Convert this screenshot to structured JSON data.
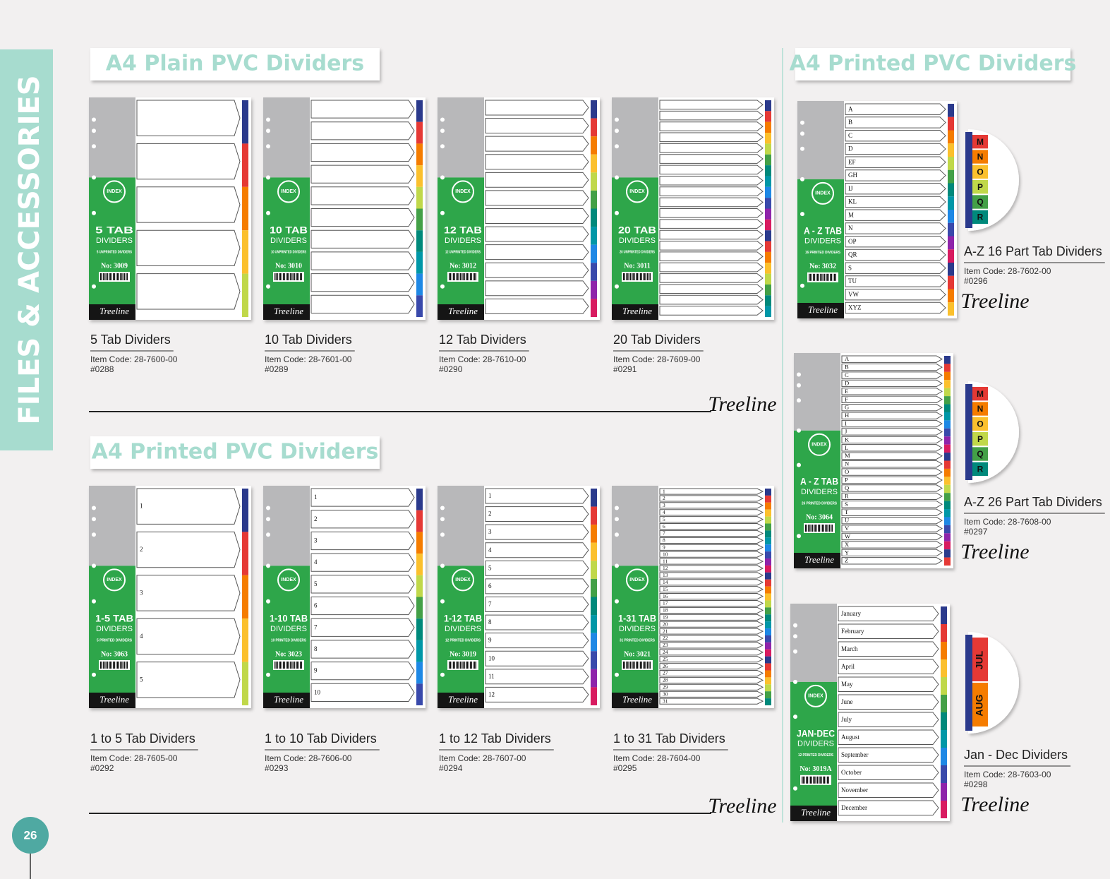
{
  "side_label": "FILES & ACCESSORIES",
  "page_number": "26",
  "brand": "Treeline",
  "pack_index": "INDEX",
  "pack_dividers": "DIVIDERS",
  "sections": [
    {
      "title": "A4 Plain PVC Dividers",
      "products": [
        {
          "name": "5 Tab Dividers",
          "item_code": "Item Code: 28-7600-00",
          "ref": "#0288",
          "pack": {
            "tab": "5 TAB",
            "note": "5 UNPRINTED DIVIDERS",
            "number": "No: 3009",
            "tab_count": 5
          }
        },
        {
          "name": "10 Tab Dividers",
          "item_code": "Item Code: 28-7601-00",
          "ref": "#0289",
          "pack": {
            "tab": "10 TAB",
            "note": "10 UNPRINTED DIVIDERS",
            "number": "No: 3010",
            "tab_count": 10
          }
        },
        {
          "name": "12 Tab Dividers",
          "item_code": "Item Code: 28-7610-00",
          "ref": "#0290",
          "pack": {
            "tab": "12 TAB",
            "note": "12 UNPRINTED DIVIDERS",
            "number": "No: 3012",
            "tab_count": 12
          }
        },
        {
          "name": "20 Tab Dividers",
          "item_code": "Item Code: 28-7609-00",
          "ref": "#0291",
          "pack": {
            "tab": "20 TAB",
            "note": "20 UNPRINTED DIVIDERS",
            "number": "No: 3011",
            "tab_count": 20
          }
        }
      ]
    },
    {
      "title": "A4 Printed PVC Dividers",
      "products": [
        {
          "name": "1 to 5 Tab Dividers",
          "item_code": "Item Code: 28-7605-00",
          "ref": "#0292",
          "pack": {
            "tab": "1-5 TAB",
            "note": "5 PRINTED DIVIDERS",
            "number": "No: 3063",
            "tab_labels": [
              "1",
              "2",
              "3",
              "4",
              "5"
            ]
          }
        },
        {
          "name": "1 to 10 Tab Dividers",
          "item_code": "Item Code: 28-7606-00",
          "ref": "#0293",
          "pack": {
            "tab": "1-10 TAB",
            "note": "10 PRINTED DIVIDERS",
            "number": "No: 3023",
            "tab_labels": [
              "1",
              "2",
              "3",
              "4",
              "5",
              "6",
              "7",
              "8",
              "9",
              "10"
            ]
          }
        },
        {
          "name": "1 to 12 Tab Dividers",
          "item_code": "Item Code: 28-7607-00",
          "ref": "#0294",
          "pack": {
            "tab": "1-12 TAB",
            "note": "12 PRINTED DIVIDERS",
            "number": "No: 3019",
            "tab_labels": [
              "1",
              "2",
              "3",
              "4",
              "5",
              "6",
              "7",
              "8",
              "9",
              "10",
              "11",
              "12"
            ]
          }
        },
        {
          "name": "1 to 31 Tab Dividers",
          "item_code": "Item Code: 28-7604-00",
          "ref": "#0295",
          "pack": {
            "tab": "1-31 TAB",
            "note": "31 PRINTED DIVIDERS",
            "number": "No: 3021",
            "tab_labels": [
              "1",
              "2",
              "3",
              "4",
              "5",
              "6",
              "7",
              "8",
              "9",
              "10",
              "11",
              "12",
              "13",
              "14",
              "15",
              "16",
              "17",
              "18",
              "19",
              "20",
              "21",
              "22",
              "23",
              "24",
              "25",
              "26",
              "27",
              "28",
              "29",
              "30",
              "31"
            ]
          }
        }
      ]
    },
    {
      "title": "A4 Printed PVC Dividers",
      "products": [
        {
          "name": "A-Z 16 Part Tab Dividers",
          "item_code": "Item Code: 28-7602-00",
          "ref": "#0296",
          "zoom_labels": [
            "M",
            "N",
            "O",
            "P",
            "Q",
            "R"
          ],
          "pack": {
            "tab": "A - Z TAB",
            "note": "16 PRINTED DIVIDERS",
            "number": "No: 3032",
            "tab_labels": [
              "A",
              "B",
              "C",
              "D",
              "EF",
              "GH",
              "IJ",
              "KL",
              "M",
              "N",
              "OP",
              "QR",
              "S",
              "TU",
              "VW",
              "XYZ"
            ]
          }
        },
        {
          "name": "A-Z 26 Part Tab Dividers",
          "item_code": "Item Code: 28-7608-00",
          "ref": "#0297",
          "zoom_labels": [
            "M",
            "N",
            "O",
            "P",
            "Q",
            "R"
          ],
          "pack": {
            "tab": "A - Z TAB",
            "note": "26 PRINTED DIVIDERS",
            "number": "No: 3064",
            "tab_labels": [
              "A",
              "B",
              "C",
              "D",
              "E",
              "F",
              "G",
              "H",
              "I",
              "J",
              "K",
              "L",
              "M",
              "N",
              "O",
              "P",
              "Q",
              "R",
              "S",
              "T",
              "U",
              "V",
              "W",
              "X",
              "Y",
              "Z"
            ]
          }
        },
        {
          "name": "Jan - Dec Dividers",
          "item_code": "Item Code: 28-7603-00",
          "ref": "#0298",
          "zoom_labels": [
            "JUL",
            "AUG"
          ],
          "pack": {
            "tab": "JAN-DEC",
            "note": "12 PRINTED DIVIDERS",
            "number": "No: 3019A",
            "tab_labels": [
              "January",
              "February",
              "March",
              "April",
              "May",
              "June",
              "July",
              "August",
              "September",
              "October",
              "November",
              "December"
            ]
          }
        }
      ]
    }
  ]
}
